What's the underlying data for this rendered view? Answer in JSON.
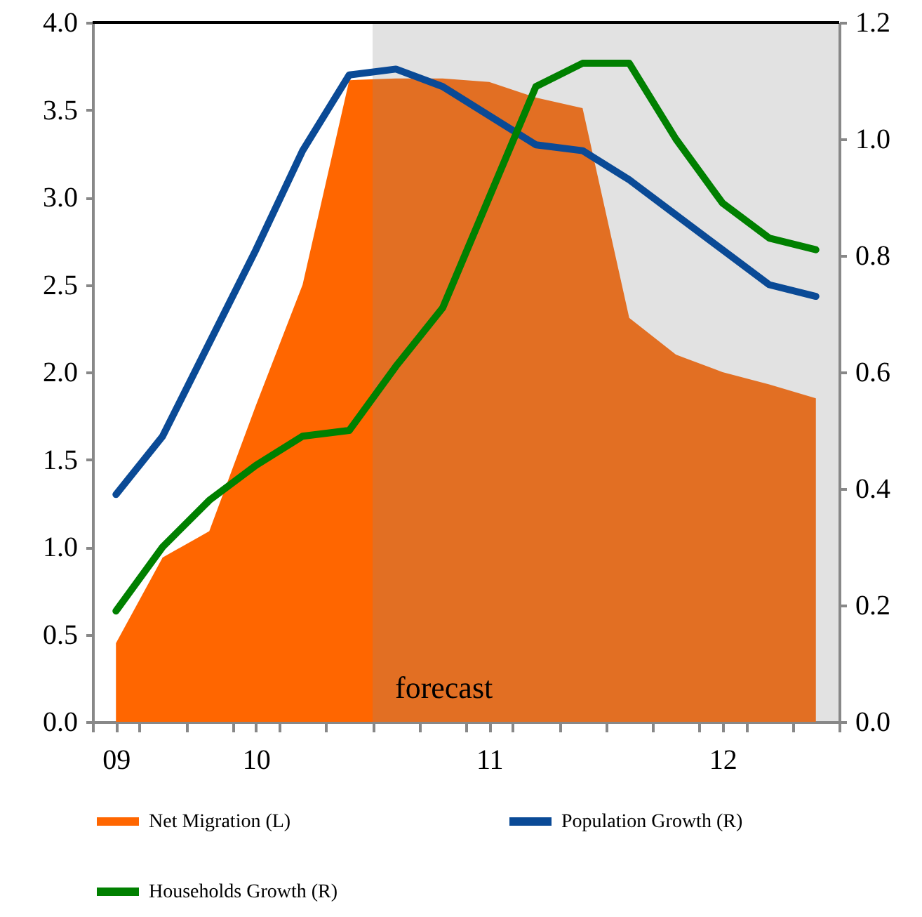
{
  "chart_data": {
    "type": "area",
    "categories": [
      "09",
      null,
      null,
      "10",
      null,
      null,
      null,
      null,
      "11",
      null,
      null,
      null,
      null,
      "12",
      null,
      null
    ],
    "series": [
      {
        "name": "Net Migration (L)",
        "color": "#ff6600",
        "values": [
          0.45,
          0.94,
          1.09,
          1.81,
          2.5,
          3.67,
          3.68,
          3.68,
          3.66,
          3.57,
          3.51,
          2.31,
          2.1,
          2.0,
          1.93,
          1.85
        ]
      },
      {
        "name": "Population Growth (R)",
        "type": "line",
        "axis": "y2",
        "color": "#0a4a96",
        "values": [
          0.39,
          0.49,
          0.65,
          0.81,
          0.98,
          1.11,
          1.12,
          1.09,
          1.04,
          0.99,
          0.98,
          0.93,
          0.87,
          0.81,
          0.75,
          0.73
        ]
      },
      {
        "name": "Households Growth (R)",
        "type": "line",
        "axis": "y2",
        "color": "#008000",
        "values": [
          0.19,
          0.3,
          0.38,
          0.44,
          0.49,
          0.5,
          0.61,
          0.71,
          0.9,
          1.09,
          1.13,
          1.13,
          1.0,
          0.89,
          0.83,
          0.81
        ]
      }
    ],
    "ylim": [
      0,
      4
    ],
    "yticks": [
      {
        "value": 0,
        "label": "0.0"
      },
      0.5,
      {
        "value": 1,
        "label": "1.0"
      },
      1.5,
      {
        "value": 2,
        "label": "2.0"
      },
      2.5,
      {
        "value": 3,
        "label": "3.0"
      },
      3.5,
      {
        "value": 4,
        "label": "4.0"
      }
    ],
    "y2lim": [
      0,
      1.2
    ],
    "y2ticks": [
      {
        "value": 0,
        "label": "0.0"
      },
      0.2,
      0.4,
      0.6,
      0.8,
      {
        "value": 1,
        "label": "1.0"
      },
      1.2
    ],
    "annotations": [
      "forecast"
    ],
    "legend": "bottom",
    "grid": false
  }
}
